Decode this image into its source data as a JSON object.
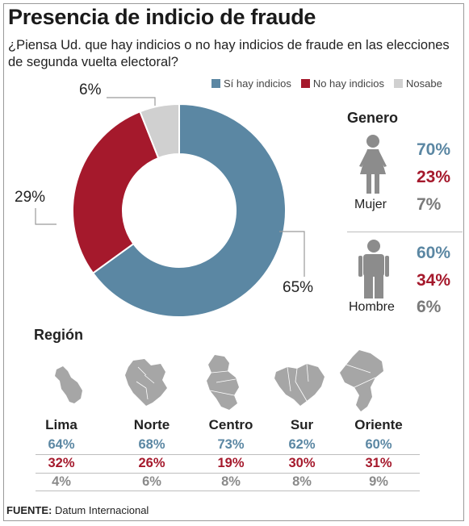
{
  "title": "Presencia de indicio de fraude",
  "question": "¿Piensa Ud. que hay indicios o no hay indicios de fraude en las elecciones de segunda vuelta electoral?",
  "colors": {
    "si": "#5b87a3",
    "no": "#a5192c",
    "nosabe": "#d0d0d0"
  },
  "chart_data": {
    "type": "pie",
    "donut": true,
    "series": [
      {
        "name": "Sí hay indicios",
        "value": 65,
        "label": "65%"
      },
      {
        "name": "No hay indicios",
        "value": 29,
        "label": "29%"
      },
      {
        "name": "Nosabe",
        "value": 6,
        "label": "6%"
      }
    ],
    "legend_position": "top-right"
  },
  "gender": {
    "title": "Genero",
    "groups": [
      {
        "label": "Mujer",
        "icon": "female-person-icon",
        "values": [
          "70%",
          "23%",
          "7%"
        ]
      },
      {
        "label": "Hombre",
        "icon": "male-person-icon",
        "values": [
          "60%",
          "34%",
          "6%"
        ]
      }
    ]
  },
  "region": {
    "title": "Región",
    "items": [
      {
        "name": "Lima",
        "icon": "lima-map-icon",
        "values": [
          "64%",
          "32%",
          "4%"
        ]
      },
      {
        "name": "Norte",
        "icon": "norte-map-icon",
        "values": [
          "68%",
          "26%",
          "6%"
        ]
      },
      {
        "name": "Centro",
        "icon": "centro-map-icon",
        "values": [
          "73%",
          "19%",
          "8%"
        ]
      },
      {
        "name": "Sur",
        "icon": "sur-map-icon",
        "values": [
          "62%",
          "30%",
          "8%"
        ]
      },
      {
        "name": "Oriente",
        "icon": "oriente-map-icon",
        "values": [
          "60%",
          "31%",
          "9%"
        ]
      }
    ]
  },
  "source": {
    "label": "FUENTE:",
    "text": "Datum Internacional"
  }
}
